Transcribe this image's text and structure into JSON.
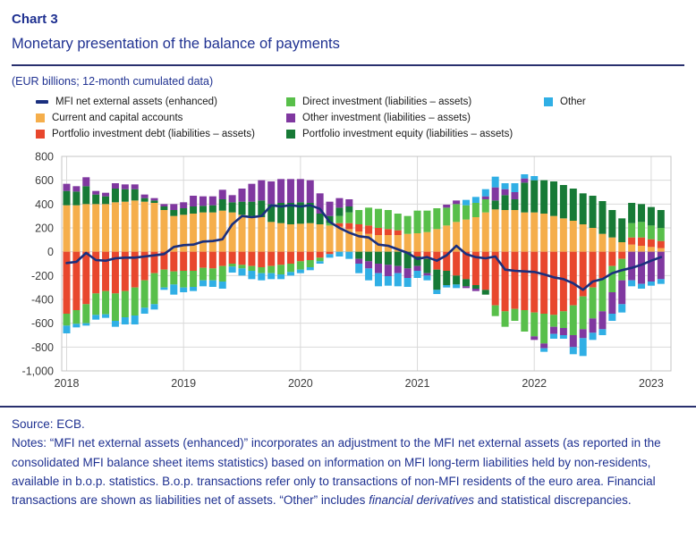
{
  "header": {
    "chart_label": "Chart 3",
    "title": "Monetary presentation of the balance of payments",
    "units": "(EUR billions; 12-month cumulated data)"
  },
  "colors": {
    "navy_line": "#1A2F7E",
    "orange": "#F5AE4B",
    "red": "#E8472D",
    "light_green": "#58BF4A",
    "dark_green": "#177A36",
    "purple": "#8038A0",
    "light_blue": "#30AFE5",
    "grid": "#D9D9D9",
    "plot_border": "#C4C4C4",
    "heading_blue": "#1F3191"
  },
  "legend": {
    "columns": [
      [
        {
          "label": "MFI net external assets (enhanced)",
          "color": "#1A2F7E",
          "marker": "line"
        },
        {
          "label": "Current and capital accounts",
          "color": "#F5AE4B",
          "marker": "square"
        },
        {
          "label": "Portfolio investment debt (liabilities – assets)",
          "color": "#E8472D",
          "marker": "square"
        }
      ],
      [
        {
          "label": "Direct investment (liabilities – assets)",
          "color": "#58BF4A",
          "marker": "square"
        },
        {
          "label": "Other investment (liabilities – assets)",
          "color": "#8038A0",
          "marker": "square"
        },
        {
          "label": "Portfolio investment equity (liabilities – assets)",
          "color": "#177A36",
          "marker": "square"
        }
      ],
      [
        {
          "label": "Other",
          "color": "#30AFE5",
          "marker": "square"
        }
      ]
    ]
  },
  "chart_data": {
    "type": "bar",
    "subtype": "stacked-bar-with-line",
    "x_start": "2018-01",
    "x_end": "2023-02",
    "months": 62,
    "x_tick_labels": [
      "2018",
      "2019",
      "2020",
      "2021",
      "2022",
      "2023"
    ],
    "x_tick_month_indices": [
      0,
      12,
      24,
      36,
      48,
      60
    ],
    "ylim": [
      -1000,
      800
    ],
    "y_tick_values": [
      800,
      600,
      400,
      200,
      0,
      -200,
      -400,
      -600,
      -800,
      -1000
    ],
    "y_tick_labels": [
      "800",
      "600",
      "400",
      "200",
      "0",
      "-200",
      "-400",
      "-600",
      "-800",
      "-1,000"
    ],
    "grid": true,
    "legend_position": "top",
    "series": [
      {
        "name": "Current and capital accounts",
        "color": "#F5AE4B",
        "values": [
          390,
          390,
          400,
          400,
          400,
          415,
          420,
          430,
          420,
          410,
          350,
          300,
          310,
          320,
          330,
          330,
          345,
          330,
          310,
          300,
          290,
          250,
          240,
          230,
          235,
          240,
          230,
          220,
          210,
          190,
          170,
          150,
          140,
          140,
          140,
          150,
          155,
          165,
          190,
          220,
          250,
          270,
          290,
          330,
          355,
          350,
          350,
          330,
          330,
          320,
          300,
          280,
          260,
          230,
          200,
          150,
          120,
          80,
          60,
          50,
          40,
          30
        ]
      },
      {
        "name": "Portfolio investment debt (liabilities – assets)",
        "color": "#E8472D",
        "values": [
          -520,
          -490,
          -440,
          -350,
          -330,
          -350,
          -330,
          -300,
          -240,
          -180,
          -150,
          -165,
          -160,
          -160,
          -135,
          -140,
          -120,
          -100,
          -110,
          -120,
          -130,
          -120,
          -110,
          -100,
          -80,
          -70,
          -50,
          -20,
          30,
          50,
          60,
          70,
          60,
          50,
          40,
          0,
          -40,
          -60,
          -150,
          -160,
          -200,
          -230,
          -280,
          -320,
          -450,
          -500,
          -480,
          -490,
          -510,
          -520,
          -530,
          -500,
          -450,
          -375,
          -300,
          -220,
          -120,
          -60,
          60,
          70,
          65,
          60
        ]
      },
      {
        "name": "Direct investment (liabilities – assets)",
        "color": "#58BF4A",
        "values": [
          -100,
          -115,
          -160,
          -180,
          -195,
          -230,
          -220,
          -235,
          -230,
          -260,
          -150,
          -110,
          -140,
          -135,
          -105,
          -100,
          -130,
          -25,
          -30,
          -40,
          -50,
          -60,
          -80,
          -70,
          -70,
          -60,
          -30,
          20,
          60,
          90,
          120,
          150,
          160,
          160,
          140,
          150,
          190,
          180,
          175,
          150,
          150,
          120,
          120,
          110,
          -90,
          -130,
          -100,
          -180,
          -200,
          -250,
          -100,
          -140,
          -250,
          -275,
          -260,
          -280,
          -220,
          -180,
          120,
          130,
          115,
          110
        ]
      },
      {
        "name": "Portfolio investment equity (liabilities – assets)",
        "color": "#177A36",
        "values": [
          120,
          115,
          150,
          80,
          65,
          115,
          105,
          95,
          30,
          20,
          30,
          50,
          55,
          60,
          55,
          60,
          95,
          85,
          110,
          120,
          140,
          150,
          170,
          180,
          180,
          170,
          90,
          60,
          70,
          50,
          -60,
          -80,
          -100,
          -110,
          -120,
          -140,
          -80,
          -120,
          -170,
          -120,
          -75,
          -60,
          -30,
          -40,
          75,
          125,
          90,
          250,
          270,
          280,
          290,
          280,
          270,
          260,
          270,
          275,
          230,
          200,
          170,
          150,
          155,
          150
        ]
      },
      {
        "name": "Other investment (liabilities – assets)",
        "color": "#8038A0",
        "values": [
          60,
          45,
          75,
          30,
          30,
          45,
          40,
          40,
          30,
          20,
          20,
          50,
          50,
          90,
          80,
          75,
          80,
          60,
          110,
          150,
          170,
          190,
          200,
          200,
          195,
          190,
          170,
          120,
          80,
          60,
          -40,
          -60,
          -80,
          -95,
          -60,
          -80,
          -40,
          -20,
          0,
          25,
          30,
          -15,
          -20,
          25,
          110,
          50,
          60,
          35,
          -30,
          -40,
          -60,
          -60,
          -100,
          -75,
          -120,
          -150,
          -180,
          -200,
          -240,
          -270,
          -250,
          -230
        ]
      },
      {
        "name": "Other",
        "color": "#30AFE5",
        "values": [
          -65,
          -30,
          -20,
          -40,
          -30,
          -50,
          -60,
          -75,
          -50,
          -45,
          -20,
          -85,
          -40,
          -35,
          -50,
          -55,
          -60,
          -50,
          -60,
          -70,
          -60,
          -50,
          -40,
          -30,
          -30,
          -25,
          -20,
          -30,
          -40,
          -60,
          -80,
          -100,
          -110,
          -80,
          -110,
          -75,
          -60,
          -40,
          -35,
          -20,
          -30,
          45,
          50,
          60,
          90,
          50,
          75,
          35,
          35,
          -30,
          -40,
          -30,
          -60,
          -150,
          -60,
          -50,
          -60,
          -70,
          -50,
          -40,
          -35,
          -40
        ]
      }
    ],
    "line_series": {
      "name": "MFI net external assets (enhanced)",
      "color": "#1A2F7E",
      "values": [
        -95,
        -85,
        -10,
        -70,
        -75,
        -55,
        -50,
        -50,
        -40,
        -30,
        -20,
        40,
        55,
        60,
        85,
        90,
        105,
        230,
        300,
        290,
        300,
        390,
        380,
        390,
        380,
        390,
        360,
        250,
        200,
        160,
        130,
        120,
        60,
        50,
        20,
        -10,
        -60,
        -45,
        -75,
        -30,
        50,
        -20,
        -45,
        -55,
        -40,
        -150,
        -160,
        -165,
        -170,
        -190,
        -215,
        -230,
        -265,
        -320,
        -250,
        -230,
        -180,
        -155,
        -135,
        -110,
        -75,
        -45
      ]
    }
  },
  "footer": {
    "source": "Source: ECB.",
    "notes_pre": "Notes: “MFI net external assets (enhanced)” incorporates an adjustment to the MFI net external assets (as reported in the consolidated MFI balance sheet items statistics) based on information on MFI long-term liabilities held by non-residents, available in b.o.p. statistics. B.o.p. transactions refer only to transactions of non-MFI residents of the euro area. Financial transactions are shown as liabilities net of assets. “Other” includes ",
    "notes_italic": "financial derivatives",
    "notes_post": " and statistical discrepancies."
  }
}
